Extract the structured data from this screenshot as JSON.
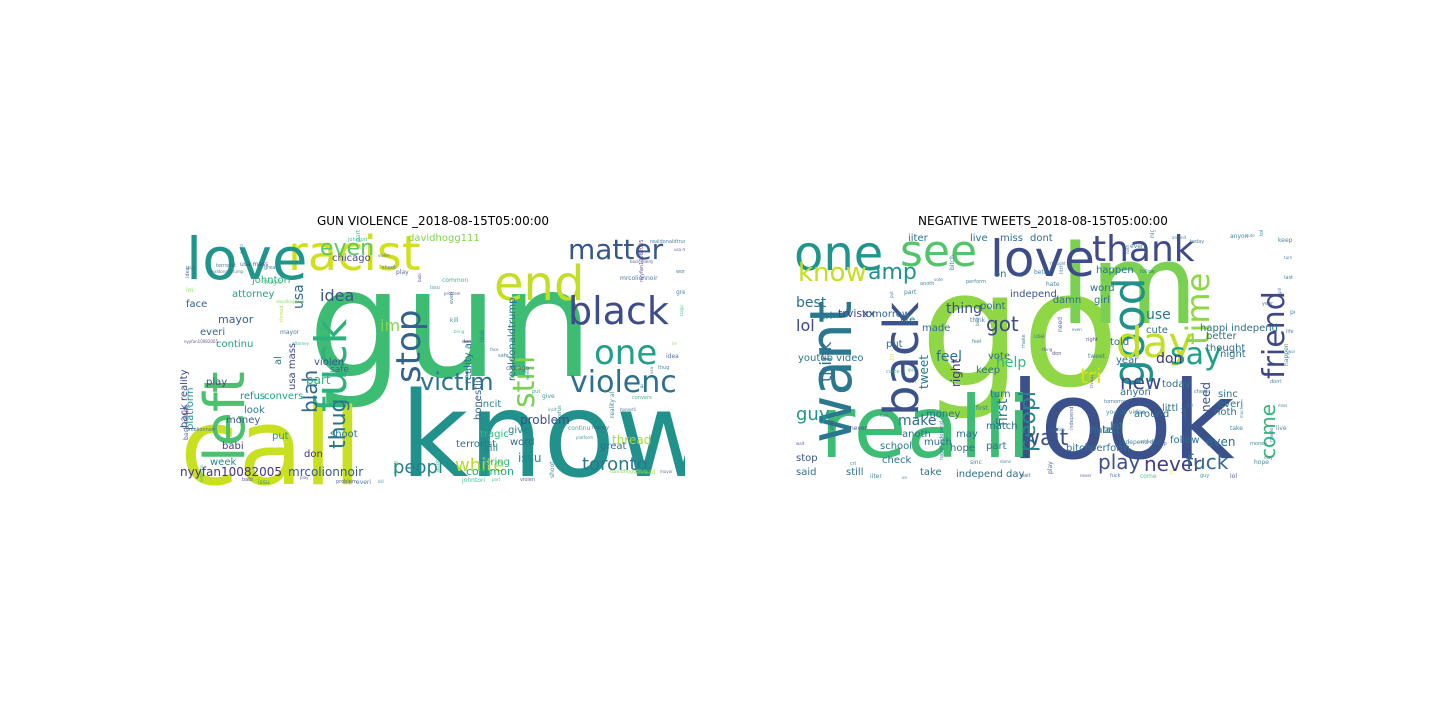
{
  "figure": {
    "panels": [
      {
        "title": "GUN VIOLENCE _2018-08-15T05:00:00",
        "words": [
          {
            "text": "gun",
            "color": "#3dbc74"
          },
          {
            "text": "know",
            "color": "#21918c"
          },
          {
            "text": "call",
            "color": "#c8e020"
          },
          {
            "text": "racist",
            "color": "#d0e11c"
          },
          {
            "text": "love",
            "color": "#1f968b"
          },
          {
            "text": "end",
            "color": "#c2df23"
          },
          {
            "text": "fuck",
            "color": "#2db27d"
          },
          {
            "text": "left",
            "color": "#4ac16d"
          },
          {
            "text": "black",
            "color": "#3e4c8a"
          },
          {
            "text": "matter",
            "color": "#38588c"
          },
          {
            "text": "one",
            "color": "#1fa088"
          },
          {
            "text": "violenc",
            "color": "#2d708e"
          },
          {
            "text": "victim",
            "color": "#2c728e"
          },
          {
            "text": "stop",
            "color": "#33638d"
          },
          {
            "text": "still",
            "color": "#7ad151"
          },
          {
            "text": "even",
            "color": "#5ec962"
          },
          {
            "text": "blah",
            "color": "#31688e"
          },
          {
            "text": "toronto",
            "color": "#2a788e"
          },
          {
            "text": "white",
            "color": "#b5de2b"
          },
          {
            "text": "peopl",
            "color": "#26828e"
          },
          {
            "text": "thug",
            "color": "#2a768e"
          },
          {
            "text": "idea",
            "color": "#3b528b"
          },
          {
            "text": "im",
            "color": "#84d44b"
          },
          {
            "text": "nyyfan10082005",
            "color": "#46337e"
          },
          {
            "text": "mrcolionnoir",
            "color": "#365c8d"
          },
          {
            "text": "back reality",
            "color": "#3e4989"
          },
          {
            "text": "realdonaldtrump",
            "color": "#2e6e8e"
          },
          {
            "text": "terrorist",
            "color": "#2c738e"
          },
          {
            "text": "usa mass",
            "color": "#414487"
          },
          {
            "text": "word",
            "color": "#2f6c8e"
          },
          {
            "text": "great",
            "color": "#2e6f8e"
          },
          {
            "text": "tragic",
            "color": "#35b779"
          },
          {
            "text": "davidhogg111",
            "color": "#7fd34e"
          },
          {
            "text": "thread",
            "color": "#a8db34"
          },
          {
            "text": "mayor",
            "color": "#34618d"
          },
          {
            "text": "attorney",
            "color": "#21a685"
          },
          {
            "text": "johntori",
            "color": "#29af7f"
          },
          {
            "text": "part",
            "color": "#31b57b"
          },
          {
            "text": "violen",
            "color": "#3a538b"
          },
          {
            "text": "shoot",
            "color": "#2b748e"
          },
          {
            "text": "play",
            "color": "#3b518b"
          },
          {
            "text": "babi",
            "color": "#433d84"
          },
          {
            "text": "issu",
            "color": "#24878e"
          },
          {
            "text": "common",
            "color": "#22a884"
          },
          {
            "text": "problem",
            "color": "#3c4f8a"
          },
          {
            "text": "everi",
            "color": "#31678e"
          },
          {
            "text": "kill",
            "color": "#25848e"
          },
          {
            "text": "bring",
            "color": "#2fb47c"
          },
          {
            "text": "don",
            "color": "#46327e"
          },
          {
            "text": "look",
            "color": "#2a788e"
          },
          {
            "text": "face",
            "color": "#365d8d"
          },
          {
            "text": "safe",
            "color": "#31688e"
          },
          {
            "text": "chicago",
            "color": "#3f4788"
          },
          {
            "text": "week",
            "color": "#228b8d"
          },
          {
            "text": "put",
            "color": "#1f9a8a"
          },
          {
            "text": "give",
            "color": "#26828e"
          },
          {
            "text": "incit",
            "color": "#25838e"
          },
          {
            "text": "refus",
            "color": "#23898e"
          },
          {
            "text": "continu",
            "color": "#1e9c89"
          },
          {
            "text": "platform",
            "color": "#20928c"
          },
          {
            "text": "money",
            "color": "#37598c"
          },
          {
            "text": "reality al",
            "color": "#2c718e"
          },
          {
            "text": "honestli",
            "color": "#34608d"
          },
          {
            "text": "convers",
            "color": "#22a785"
          },
          {
            "text": "al",
            "color": "#29798e"
          },
          {
            "text": "usa",
            "color": "#2f6c8e"
          }
        ]
      },
      {
        "title": "NEGATIVE TWEETS_2018-08-15T05:00:00",
        "words": [
          {
            "text": "go",
            "color": "#8fd744"
          },
          {
            "text": "im",
            "color": "#7ad151"
          },
          {
            "text": "look",
            "color": "#3b518b"
          },
          {
            "text": "realli",
            "color": "#3dbc74"
          },
          {
            "text": "want",
            "color": "#2a788e"
          },
          {
            "text": "back",
            "color": "#3b528b"
          },
          {
            "text": "one",
            "color": "#1f968b"
          },
          {
            "text": "see",
            "color": "#52c569"
          },
          {
            "text": "love",
            "color": "#3e4c8a"
          },
          {
            "text": "thank",
            "color": "#3e4a89"
          },
          {
            "text": "good",
            "color": "#21918c"
          },
          {
            "text": "day",
            "color": "#c0df25"
          },
          {
            "text": "say",
            "color": "#1fa187"
          },
          {
            "text": "time",
            "color": "#8fd744"
          },
          {
            "text": "friend",
            "color": "#3f4788"
          },
          {
            "text": "know",
            "color": "#c5e021"
          },
          {
            "text": "amp",
            "color": "#21918c"
          },
          {
            "text": "got",
            "color": "#3e4989"
          },
          {
            "text": "new",
            "color": "#3e4989"
          },
          {
            "text": "peopl",
            "color": "#26828e"
          },
          {
            "text": "wait",
            "color": "#3c4f8a"
          },
          {
            "text": "play",
            "color": "#3c508b"
          },
          {
            "text": "never",
            "color": "#423f85"
          },
          {
            "text": "fuck",
            "color": "#31688e"
          },
          {
            "text": "come",
            "color": "#35b779"
          },
          {
            "text": "tri",
            "color": "#d8e219"
          },
          {
            "text": "guy",
            "color": "#1f978b"
          },
          {
            "text": "lol",
            "color": "#3f4788"
          },
          {
            "text": "think",
            "color": "#2f6c8e"
          },
          {
            "text": "best",
            "color": "#2c728e"
          },
          {
            "text": "feel",
            "color": "#2c728e"
          },
          {
            "text": "first",
            "color": "#2c718e"
          },
          {
            "text": "help",
            "color": "#35b779"
          },
          {
            "text": "make",
            "color": "#2f6c8e"
          },
          {
            "text": "use",
            "color": "#2a778e"
          },
          {
            "text": "thing",
            "color": "#3b518b"
          },
          {
            "text": "don",
            "color": "#46327e"
          },
          {
            "text": "need",
            "color": "#3a548c"
          },
          {
            "text": "even",
            "color": "#2c718e"
          },
          {
            "text": "right",
            "color": "#46327e"
          },
          {
            "text": "tweet",
            "color": "#2a788e"
          },
          {
            "text": "trvisxx",
            "color": "#414487"
          },
          {
            "text": "tomorrow",
            "color": "#31688e"
          },
          {
            "text": "youtub video",
            "color": "#2a778e"
          },
          {
            "text": "match",
            "color": "#2c728e"
          },
          {
            "text": "independ",
            "color": "#3b528b"
          },
          {
            "text": "independ day",
            "color": "#2d708e"
          },
          {
            "text": "school",
            "color": "#2c738e"
          },
          {
            "text": "stop",
            "color": "#3b528b"
          },
          {
            "text": "said",
            "color": "#2c728e"
          },
          {
            "text": "still",
            "color": "#2c728e"
          },
          {
            "text": "check",
            "color": "#2c728e"
          },
          {
            "text": "take",
            "color": "#2c728e"
          },
          {
            "text": "much",
            "color": "#2c728e"
          },
          {
            "text": "money",
            "color": "#2c728e"
          },
          {
            "text": "hope",
            "color": "#2c728e"
          },
          {
            "text": "may",
            "color": "#2c728e"
          },
          {
            "text": "made",
            "color": "#2c728e"
          },
          {
            "text": "live",
            "color": "#2c728e"
          },
          {
            "text": "miss",
            "color": "#2c728e"
          },
          {
            "text": "dont",
            "color": "#2c728e"
          },
          {
            "text": "happen",
            "color": "#2c728e"
          },
          {
            "text": "word",
            "color": "#2c728e"
          },
          {
            "text": "life",
            "color": "#2c728e"
          },
          {
            "text": "point",
            "color": "#2c728e"
          },
          {
            "text": "girl",
            "color": "#2c728e"
          },
          {
            "text": "year",
            "color": "#2c728e"
          },
          {
            "text": "anyon",
            "color": "#2c728e"
          },
          {
            "text": "cute",
            "color": "#2c728e"
          },
          {
            "text": "told",
            "color": "#2c728e"
          },
          {
            "text": "keep",
            "color": "#2c728e"
          },
          {
            "text": "turn",
            "color": "#2c728e"
          },
          {
            "text": "last",
            "color": "#2c728e"
          },
          {
            "text": "night",
            "color": "#2c728e"
          },
          {
            "text": "around",
            "color": "#2c728e"
          },
          {
            "text": "today",
            "color": "#2c728e"
          },
          {
            "text": "everi",
            "color": "#2c728e"
          },
          {
            "text": "noth",
            "color": "#2c728e"
          },
          {
            "text": "follow",
            "color": "#2c728e"
          },
          {
            "text": "better",
            "color": "#2c728e"
          },
          {
            "text": "thought",
            "color": "#2c728e"
          },
          {
            "text": "littl",
            "color": "#2c728e"
          },
          {
            "text": "hate",
            "color": "#2c728e"
          },
          {
            "text": "let",
            "color": "#2c728e"
          },
          {
            "text": "perform",
            "color": "#2c728e"
          },
          {
            "text": "bitch",
            "color": "#2c728e"
          },
          {
            "text": "vote",
            "color": "#2c728e"
          },
          {
            "text": "anoth",
            "color": "#2c728e"
          },
          {
            "text": "part",
            "color": "#2c728e"
          },
          {
            "text": "put",
            "color": "#2c728e"
          },
          {
            "text": "cri",
            "color": "#2c728e"
          },
          {
            "text": "iiter",
            "color": "#2c728e"
          },
          {
            "text": "on",
            "color": "#2c728e"
          },
          {
            "text": "happi independ",
            "color": "#2c728e"
          },
          {
            "text": "sinc",
            "color": "#2c728e"
          },
          {
            "text": "damn",
            "color": "#2c728e"
          }
        ]
      }
    ]
  }
}
